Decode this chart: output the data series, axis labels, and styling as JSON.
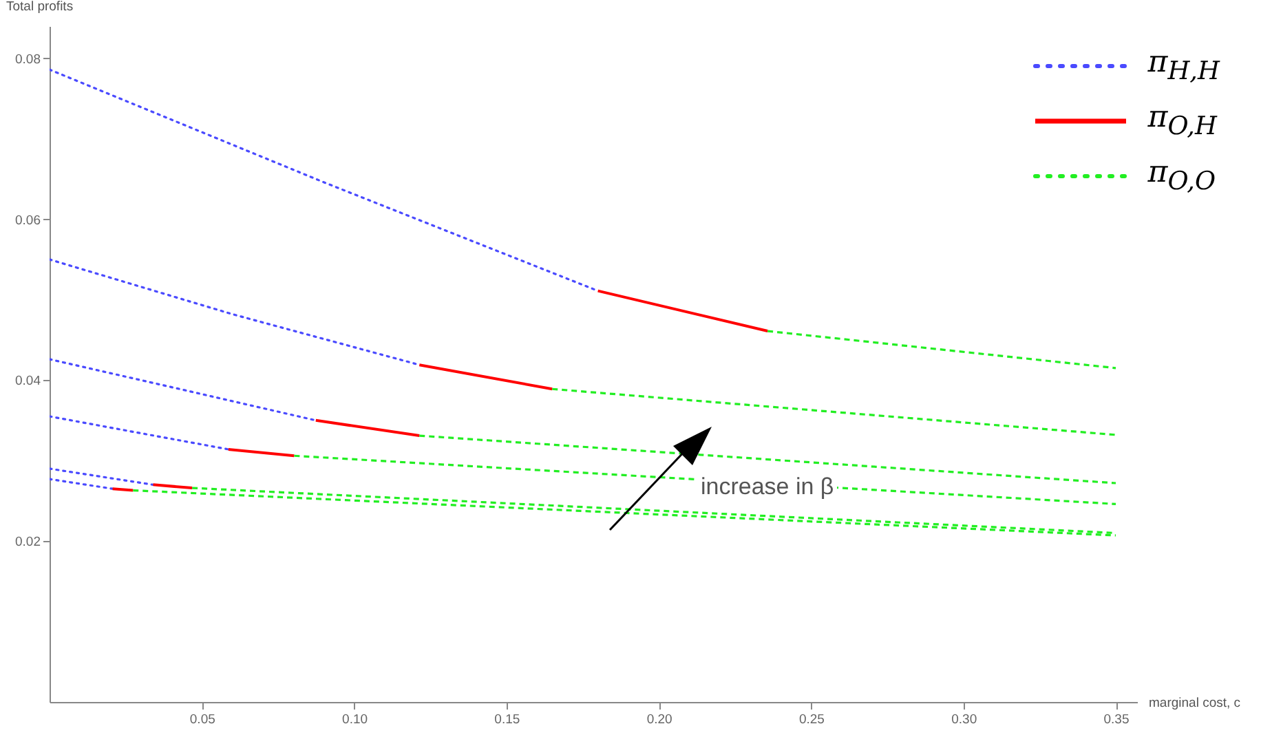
{
  "chart_data": {
    "type": "line",
    "xlabel": "marginal cost, c",
    "ylabel": "Total profits",
    "xlim": [
      0,
      0.357
    ],
    "ylim": [
      0,
      0.084
    ],
    "xticks": [
      0.05,
      {
        "value": 0.1,
        "label": "0.10"
      },
      0.15,
      {
        "value": 0.2,
        "label": "0.20"
      },
      0.25,
      {
        "value": 0.3,
        "label": "0.30"
      },
      0.35
    ],
    "yticks": [
      0.02,
      0.04,
      0.06,
      0.08
    ],
    "grid": false,
    "legend": "top right",
    "annotations": [
      "increase in β"
    ],
    "series": [
      {
        "name": "π$_{H,H}$",
        "color": "#4a4aff",
        "line_style": "dotted",
        "x": [
          0,
          0.09,
          0.18,
          null,
          0,
          0.06,
          0.1214,
          null,
          0,
          0.045,
          0.0874,
          null,
          0,
          0.03,
          0.0587,
          null,
          0,
          0.017,
          0.034,
          null,
          0,
          0.0207
        ],
        "values": [
          0.0786,
          0.0646,
          0.0511,
          null,
          0.055,
          0.0482,
          0.0419,
          null,
          0.0426,
          0.0387,
          0.035,
          null,
          0.0355,
          0.0334,
          0.0314,
          null,
          0.029,
          0.028,
          0.027,
          null,
          0.0277,
          0.0265
        ]
      },
      {
        "name": "π$_{O,H}$",
        "color": "#ff0000",
        "line_style": "solid",
        "x": [
          0.18,
          0.2357,
          null,
          0.1214,
          0.165,
          null,
          0.0874,
          0.1214,
          null,
          0.0587,
          0.0803,
          null,
          0.034,
          0.0468,
          null,
          0.0207,
          0.0274
        ],
        "values": [
          0.0511,
          0.0461,
          null,
          0.0419,
          0.0389,
          null,
          0.035,
          0.0331,
          null,
          0.0314,
          0.0306,
          null,
          0.027,
          0.0266,
          null,
          0.0265,
          0.0263
        ]
      },
      {
        "name": "π$_{O,O}$",
        "color": "#22ee22",
        "line_style": "dashed",
        "x": [
          0.2357,
          0.35,
          null,
          0.165,
          0.35,
          null,
          0.1214,
          0.35,
          null,
          0.0803,
          0.35,
          null,
          0.0468,
          0.35,
          null,
          0.0274,
          0.35
        ],
        "values": [
          0.0461,
          0.0415,
          null,
          0.0389,
          0.0332,
          null,
          0.0331,
          0.0272,
          null,
          0.0306,
          0.0246,
          null,
          0.0266,
          0.021,
          null,
          0.0263,
          0.0207
        ]
      }
    ]
  }
}
